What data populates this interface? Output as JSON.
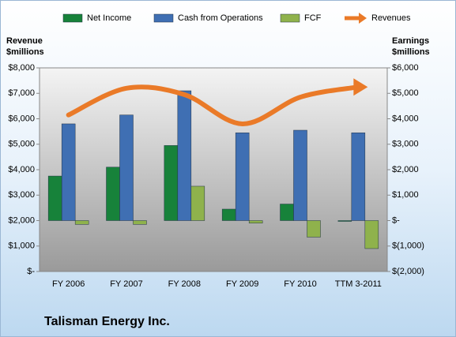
{
  "chart_data": {
    "type": "bar",
    "title": "Talisman Energy Inc.",
    "y_label": [
      "Revenue",
      "$millions"
    ],
    "y2_label": [
      "Earnings",
      "$millions"
    ],
    "categories": [
      "FY 2006",
      "FY 2007",
      "FY 2008",
      "FY 2009",
      "FY 2010",
      "TTM 3-2011"
    ],
    "series": [
      {
        "name": "Net Income",
        "type": "bar",
        "axis": "y2",
        "color": "#17823a",
        "values": [
          1750,
          2100,
          2950,
          450,
          650,
          -30
        ]
      },
      {
        "name": "Cash from Operations",
        "type": "bar",
        "axis": "y2",
        "color": "#3f6fb3",
        "values": [
          3800,
          4150,
          5100,
          3450,
          3550,
          3450
        ]
      },
      {
        "name": "FCF",
        "type": "bar",
        "axis": "y2",
        "color": "#8fb24c",
        "values": [
          -150,
          -150,
          1350,
          -100,
          -650,
          -1100
        ]
      },
      {
        "name": "Revenues",
        "type": "line",
        "axis": "y",
        "color": "#ea7a28",
        "values": [
          6150,
          7200,
          6950,
          5800,
          6850,
          7250
        ]
      }
    ],
    "ylim": [
      0,
      8000
    ],
    "yticks": [
      {
        "value": 0,
        "label": "$-"
      },
      {
        "value": 1000,
        "label": "$1,000"
      },
      {
        "value": 2000,
        "label": "$2,000"
      },
      {
        "value": 3000,
        "label": "$3,000"
      },
      {
        "value": 4000,
        "label": "$4,000"
      },
      {
        "value": 5000,
        "label": "$5,000"
      },
      {
        "value": 6000,
        "label": "$6,000"
      },
      {
        "value": 7000,
        "label": "$7,000"
      },
      {
        "value": 8000,
        "label": "$8,000"
      }
    ],
    "y2lim": [
      -2000,
      6000
    ],
    "y2ticks": [
      {
        "value": -2000,
        "label": "$(2,000)"
      },
      {
        "value": -1000,
        "label": "$(1,000)"
      },
      {
        "value": 0,
        "label": "$-"
      },
      {
        "value": 1000,
        "label": "$1,000"
      },
      {
        "value": 2000,
        "label": "$2,000"
      },
      {
        "value": 3000,
        "label": "$3,000"
      },
      {
        "value": 4000,
        "label": "$4,000"
      },
      {
        "value": 5000,
        "label": "$5,000"
      },
      {
        "value": 6000,
        "label": "$6,000"
      }
    ],
    "grid": false
  }
}
